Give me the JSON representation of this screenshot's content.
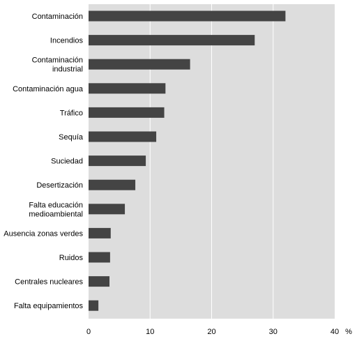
{
  "chart_data": {
    "type": "bar",
    "orientation": "horizontal",
    "categories": [
      [
        "Contaminación"
      ],
      [
        "Incendios"
      ],
      [
        "Contaminación",
        "industrial"
      ],
      [
        "Contaminación agua"
      ],
      [
        "Tráfico"
      ],
      [
        "Sequía"
      ],
      [
        "Suciedad"
      ],
      [
        "Desertización"
      ],
      [
        "Falta educación",
        "medioambiental"
      ],
      [
        "Ausencia zonas verdes"
      ],
      [
        "Ruidos"
      ],
      [
        "Centrales nucleares"
      ],
      [
        "Falta equipamientos"
      ]
    ],
    "values": [
      32.0,
      27.0,
      16.5,
      12.5,
      12.3,
      11.0,
      9.3,
      7.6,
      5.9,
      3.6,
      3.5,
      3.4,
      1.6
    ],
    "xlim": [
      0,
      40
    ],
    "xticks": [
      "0",
      "10",
      "20",
      "30",
      "40"
    ],
    "xunit": "%",
    "grid": true,
    "colors": {
      "plot_background": "#dddddd",
      "bar": "#444444",
      "grid": "#ffffff"
    }
  }
}
